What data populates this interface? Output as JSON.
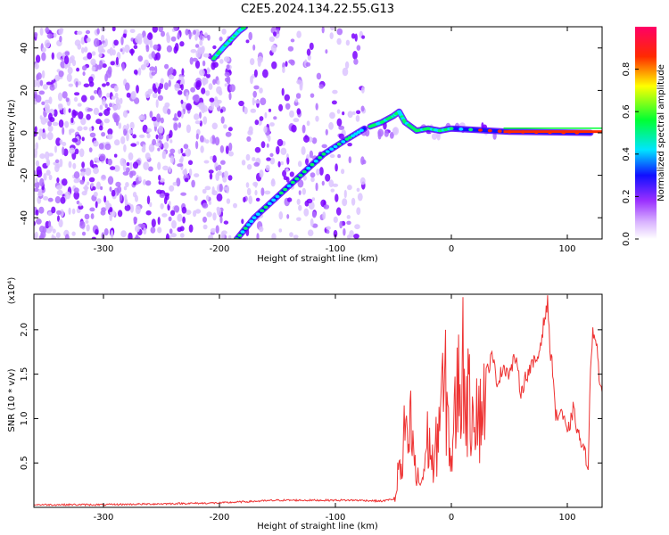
{
  "title": "C2E5.2024.134.22.55.G13",
  "chart_data": [
    {
      "type": "heatmap",
      "xlabel": "Height of straight line (km)",
      "ylabel": "Frequency (Hz)",
      "xlim": [
        -360,
        130
      ],
      "ylim": [
        -50,
        50
      ],
      "xticks": [
        -300,
        -200,
        -100,
        0,
        100
      ],
      "yticks": [
        -40,
        -20,
        0,
        20,
        40
      ],
      "colorbar": {
        "label": "Normalized spectral amplitude",
        "range": [
          0,
          1
        ],
        "ticks": [
          "0.0",
          "0.2",
          "0.4",
          "0.6",
          "0.8"
        ],
        "colors": [
          "#ffffff",
          "#9b30ff",
          "#1010ff",
          "#00e5ff",
          "#00ff33",
          "#ffff00",
          "#ff2a00",
          "#ff0066"
        ]
      },
      "tracks": [
        {
          "x": [
            -185,
            -170,
            -150,
            -130,
            -110,
            -90,
            -75
          ],
          "y": [
            -50,
            -40,
            -30,
            -20,
            -10,
            -3,
            2
          ]
        },
        {
          "x": [
            -205,
            -197,
            -190,
            -183,
            -178
          ],
          "y": [
            35,
            40,
            44,
            48,
            50
          ]
        },
        {
          "x": [
            -70,
            -60,
            -50,
            -45,
            -40,
            -30,
            -20,
            -10,
            0,
            50,
            120
          ],
          "y": [
            3,
            5,
            8,
            10,
            5,
            1,
            2,
            1,
            2,
            0.5,
            0
          ]
        }
      ]
    },
    {
      "type": "line",
      "xlabel": "Height of straight line (km)",
      "ylabel": "SNR (10 * v/v)",
      "scale_label": "(x10⁴)",
      "xlim": [
        -360,
        130
      ],
      "ylim": [
        0,
        2.4
      ],
      "xticks": [
        -300,
        -200,
        -100,
        0,
        100
      ],
      "yticks": [
        "0.5",
        "1.0",
        "1.5",
        "2.0"
      ],
      "color": "#ee3333",
      "x": [
        -360,
        -300,
        -250,
        -200,
        -150,
        -100,
        -80,
        -60,
        -48,
        -45,
        -42,
        -40,
        -38,
        -35,
        -30,
        -25,
        -20,
        -15,
        -10,
        -5,
        0,
        5,
        10,
        15,
        20,
        25,
        30,
        35,
        40,
        45,
        50,
        55,
        60,
        65,
        70,
        75,
        80,
        83,
        85,
        88,
        90,
        95,
        100,
        105,
        110,
        115,
        118,
        120,
        122,
        125,
        128,
        130
      ],
      "y": [
        0.03,
        0.03,
        0.04,
        0.05,
        0.08,
        0.08,
        0.08,
        0.07,
        0.1,
        0.5,
        0.3,
        1.0,
        0.6,
        0.9,
        0.3,
        0.3,
        0.8,
        0.4,
        1.1,
        1.3,
        0.5,
        1.3,
        1.6,
        1.1,
        1.3,
        1.0,
        1.5,
        1.7,
        1.4,
        1.6,
        1.5,
        1.7,
        1.3,
        1.5,
        1.6,
        1.7,
        2.1,
        2.3,
        1.8,
        1.5,
        1.0,
        1.1,
        0.8,
        1.1,
        0.8,
        0.6,
        0.5,
        1.5,
        2.0,
        1.9,
        1.4,
        1.3
      ]
    }
  ]
}
